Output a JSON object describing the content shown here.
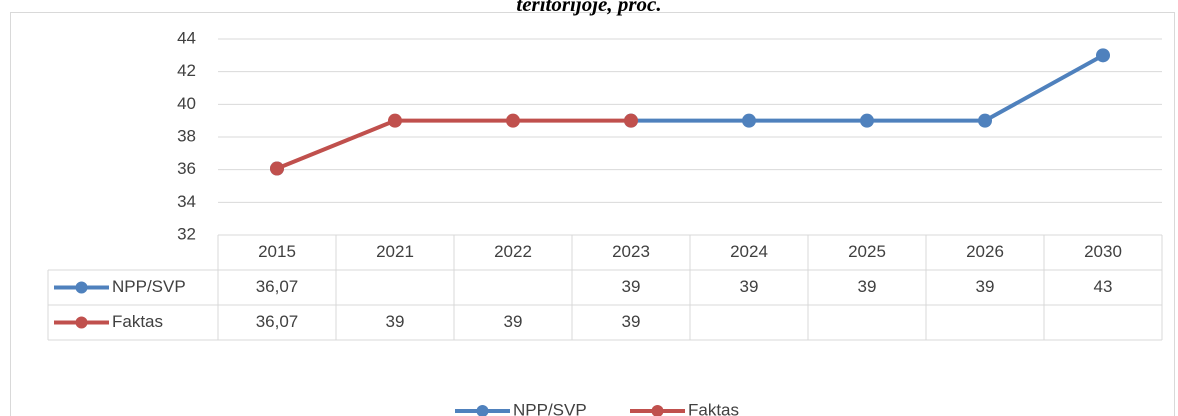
{
  "chart_data": {
    "type": "line",
    "title": "teritorijoje, proc.",
    "categories": [
      "2015",
      "2021",
      "2022",
      "2023",
      "2024",
      "2025",
      "2026",
      "2030"
    ],
    "series": [
      {
        "name": "NPP/SVP",
        "color": "#4f81bd",
        "values": [
          36.07,
          null,
          null,
          39,
          39,
          39,
          39,
          43
        ],
        "value_labels": [
          "36,07",
          null,
          null,
          "39",
          "39",
          "39",
          "39",
          "43"
        ]
      },
      {
        "name": "Faktas",
        "color": "#c0504d",
        "values": [
          36.07,
          39,
          39,
          39,
          null,
          null,
          null,
          null
        ],
        "value_labels": [
          "36,07",
          "39",
          "39",
          "39",
          null,
          null,
          null,
          null
        ]
      }
    ],
    "ylim": [
      32,
      44
    ],
    "yticks": [
      32,
      34,
      36,
      38,
      40,
      42,
      44
    ],
    "grid": true,
    "legend": "bottom"
  }
}
